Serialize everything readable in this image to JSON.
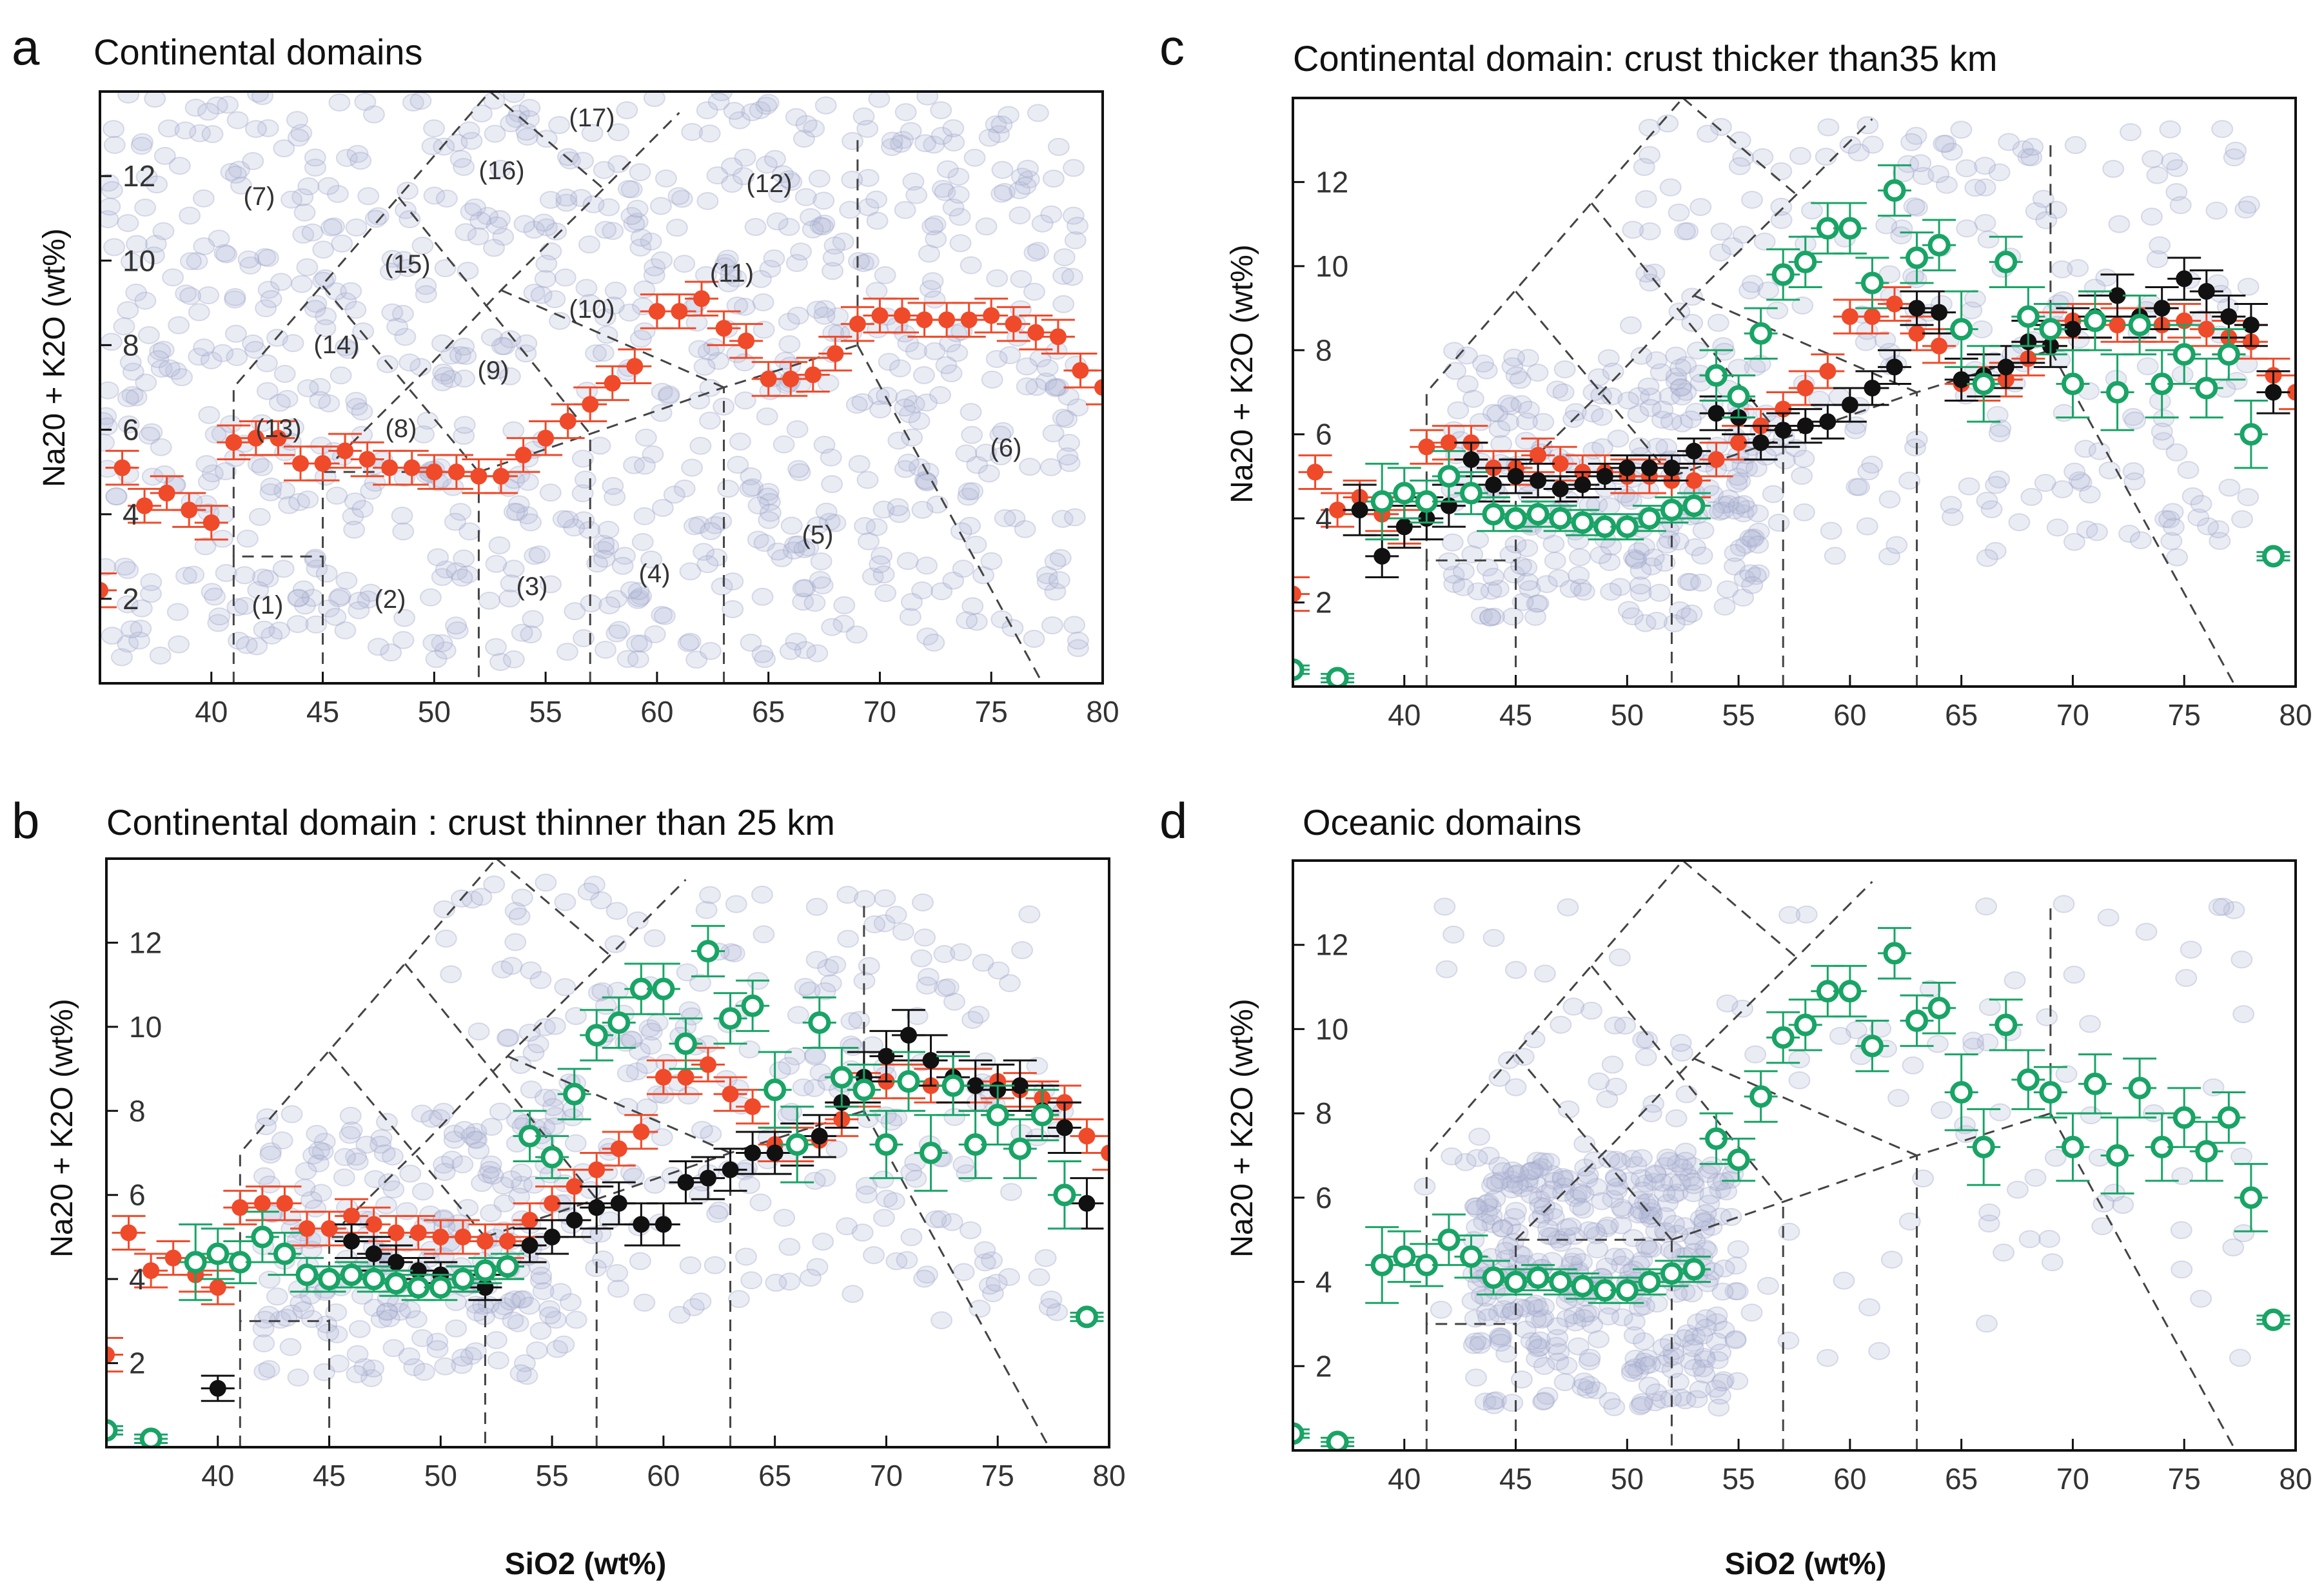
{
  "figure": {
    "xlabel": "SiO2 (wt%)",
    "ylabel": "Na20 + K2O (wt%)",
    "colors": {
      "red": "#ef4a2a",
      "black": "#111111",
      "green": "#19a466",
      "cloud": "#b5bad6"
    }
  },
  "panels": [
    {
      "letter": "a",
      "title": "Continental domains",
      "show_xlabel": false,
      "xticks": [
        "40",
        "45",
        "50",
        "55",
        "60",
        "65",
        "70",
        "75",
        "80"
      ],
      "yticks": [
        "2",
        "4",
        "6",
        "8",
        "10",
        "12"
      ],
      "field_labels": [
        "(1)",
        "(2)",
        "(3)",
        "(4)",
        "(5)",
        "(6)",
        "(7)",
        "(8)",
        "(9)",
        "(10)",
        "(11)",
        "(12)",
        "(13)",
        "(14)",
        "(15)",
        "(16)",
        "(17)"
      ]
    },
    {
      "letter": "b",
      "title": "Continental domain : crust thinner than 25 km",
      "show_xlabel": true,
      "xticks": [
        "40",
        "45",
        "50",
        "55",
        "60",
        "65",
        "70",
        "75",
        "80"
      ],
      "yticks": [
        "2",
        "4",
        "6",
        "8",
        "10",
        "12"
      ]
    },
    {
      "letter": "c",
      "title": "Continental domain: crust thicker than35 km",
      "show_xlabel": false,
      "xticks": [
        "40",
        "45",
        "50",
        "55",
        "60",
        "65",
        "70",
        "75",
        "80"
      ],
      "yticks": [
        "2",
        "4",
        "6",
        "8",
        "10",
        "12"
      ]
    },
    {
      "letter": "d",
      "title": "Oceanic domains",
      "show_xlabel": true,
      "xticks": [
        "40",
        "45",
        "50",
        "55",
        "60",
        "65",
        "70",
        "75",
        "80"
      ],
      "yticks": [
        "2",
        "4",
        "6",
        "8",
        "10",
        "12"
      ]
    }
  ],
  "chart_data": [
    {
      "panel": "a",
      "type": "scatter",
      "title": "Continental domains",
      "xlabel": "",
      "ylabel": "Na20 + K2O (wt%)",
      "xlim": [
        35,
        80
      ],
      "ylim": [
        0,
        14
      ],
      "series": [
        {
          "name": "red",
          "marker": "filled",
          "x": [
            35,
            36,
            37,
            38,
            39,
            40,
            41,
            42,
            43,
            44,
            45,
            46,
            47,
            48,
            49,
            50,
            51,
            52,
            53,
            54,
            55,
            56,
            57,
            58,
            59,
            60,
            61,
            62,
            63,
            64,
            65,
            66,
            67,
            68,
            69,
            70,
            71,
            72,
            73,
            74,
            75,
            76,
            77,
            78,
            79,
            80
          ],
          "y": [
            2.2,
            5.1,
            4.2,
            4.5,
            4.1,
            3.8,
            5.7,
            5.8,
            5.8,
            5.2,
            5.2,
            5.5,
            5.3,
            5.1,
            5.1,
            5.0,
            5.0,
            4.9,
            4.9,
            5.4,
            5.8,
            6.2,
            6.6,
            7.1,
            7.5,
            8.8,
            8.8,
            9.1,
            8.4,
            8.1,
            7.2,
            7.2,
            7.3,
            7.8,
            8.5,
            8.7,
            8.7,
            8.6,
            8.6,
            8.6,
            8.7,
            8.5,
            8.3,
            8.2,
            7.4,
            7.0
          ]
        }
      ]
    },
    {
      "panel": "b",
      "type": "scatter",
      "title": "Continental domain : crust thinner than 25 km",
      "xlabel": "SiO2 (wt%)",
      "ylabel": "Na20 + K2O (wt%)",
      "xlim": [
        35,
        80
      ],
      "ylim": [
        0,
        14
      ],
      "series": [
        {
          "name": "red",
          "marker": "filled",
          "x": [
            35,
            36,
            37,
            38,
            39,
            40,
            41,
            42,
            43,
            44,
            45,
            46,
            47,
            48,
            49,
            50,
            51,
            52,
            53,
            54,
            55,
            56,
            57,
            58,
            59,
            60,
            61,
            62,
            63,
            64,
            65,
            66,
            67,
            68,
            69,
            70,
            71,
            72,
            73,
            74,
            75,
            76,
            77,
            78,
            79,
            80
          ],
          "y": [
            2.2,
            5.1,
            4.2,
            4.5,
            4.1,
            3.8,
            5.7,
            5.8,
            5.8,
            5.2,
            5.2,
            5.5,
            5.3,
            5.1,
            5.1,
            5.0,
            5.0,
            4.9,
            4.9,
            5.4,
            5.8,
            6.2,
            6.6,
            7.1,
            7.5,
            8.8,
            8.8,
            9.1,
            8.4,
            8.1,
            7.2,
            7.2,
            7.3,
            7.8,
            8.5,
            8.7,
            8.7,
            8.6,
            8.6,
            8.6,
            8.7,
            8.5,
            8.3,
            8.2,
            7.4,
            7.0
          ]
        },
        {
          "name": "black",
          "marker": "filled",
          "x": [
            40,
            46,
            47,
            48,
            49,
            50,
            51,
            52,
            53,
            54,
            55,
            56,
            57,
            58,
            59,
            60,
            61,
            62,
            63,
            64,
            65,
            66,
            67,
            68,
            69,
            70,
            71,
            72,
            73,
            74,
            75,
            76,
            77,
            78,
            79
          ],
          "y": [
            1.4,
            4.9,
            4.6,
            4.4,
            4.2,
            4.1,
            4.0,
            3.8,
            4.3,
            4.8,
            5.0,
            5.4,
            5.7,
            5.8,
            5.3,
            5.3,
            6.3,
            6.4,
            6.6,
            7.0,
            7.0,
            7.2,
            7.4,
            8.2,
            8.8,
            9.3,
            9.8,
            9.2,
            8.8,
            8.6,
            8.5,
            8.6,
            8.0,
            7.6,
            5.8
          ],
          "err": [
            0.3,
            0.4,
            0.4,
            0.4,
            0.3,
            0.3,
            0.3,
            0.3,
            0.3,
            0.4,
            0.4,
            0.4,
            0.5,
            0.5,
            0.5,
            0.5,
            0.5,
            0.5,
            0.5,
            0.5,
            0.5,
            0.5,
            0.5,
            0.6,
            0.6,
            0.6,
            0.6,
            0.6,
            0.6,
            0.6,
            0.6,
            0.6,
            0.6,
            0.6,
            0.6
          ]
        },
        {
          "name": "green",
          "marker": "open",
          "x": [
            35,
            37,
            39,
            40,
            41,
            42,
            43,
            44,
            45,
            46,
            47,
            48,
            49,
            50,
            51,
            52,
            53,
            54,
            55,
            56,
            57,
            58,
            59,
            60,
            61,
            62,
            63,
            64,
            65,
            66,
            67,
            68,
            69,
            70,
            71,
            72,
            73,
            74,
            75,
            76,
            77,
            78,
            79
          ],
          "y": [
            0.4,
            0.2,
            4.4,
            4.6,
            4.4,
            5.0,
            4.6,
            4.1,
            4.0,
            4.1,
            4.0,
            3.9,
            3.8,
            3.8,
            4.0,
            4.2,
            4.3,
            7.4,
            6.9,
            8.4,
            9.8,
            10.1,
            10.9,
            10.9,
            9.6,
            11.8,
            10.2,
            10.5,
            8.5,
            7.2,
            10.1,
            8.8,
            8.5,
            7.2,
            8.7,
            7.0,
            8.6,
            7.2,
            7.9,
            7.1,
            7.9,
            6.0,
            3.1
          ],
          "err": [
            0.1,
            0.1,
            0.9,
            0.6,
            0.5,
            0.6,
            0.5,
            0.4,
            0.3,
            0.3,
            0.3,
            0.3,
            0.3,
            0.3,
            0.3,
            0.3,
            0.3,
            0.6,
            0.5,
            0.6,
            0.6,
            0.6,
            0.6,
            0.6,
            0.6,
            0.6,
            0.6,
            0.6,
            0.9,
            0.9,
            0.6,
            0.7,
            0.6,
            0.8,
            0.7,
            0.9,
            0.7,
            0.8,
            0.7,
            0.7,
            0.6,
            0.8,
            0.1
          ]
        }
      ]
    },
    {
      "panel": "c",
      "type": "scatter",
      "title": "Continental domain: crust thicker than35 km",
      "xlabel": "",
      "ylabel": "Na20 + K2O (wt%)",
      "xlim": [
        35,
        80
      ],
      "ylim": [
        0,
        14
      ],
      "series": [
        {
          "name": "red",
          "marker": "filled",
          "x": [
            35,
            36,
            37,
            38,
            39,
            40,
            41,
            42,
            43,
            44,
            45,
            46,
            47,
            48,
            49,
            50,
            51,
            52,
            53,
            54,
            55,
            56,
            57,
            58,
            59,
            60,
            61,
            62,
            63,
            64,
            65,
            66,
            67,
            68,
            69,
            70,
            71,
            72,
            73,
            74,
            75,
            76,
            77,
            78,
            79,
            80
          ],
          "y": [
            2.2,
            5.1,
            4.2,
            4.5,
            4.1,
            3.8,
            5.7,
            5.8,
            5.8,
            5.2,
            5.2,
            5.5,
            5.3,
            5.1,
            5.1,
            5.0,
            5.0,
            4.9,
            4.9,
            5.4,
            5.8,
            6.2,
            6.6,
            7.1,
            7.5,
            8.8,
            8.8,
            9.1,
            8.4,
            8.1,
            7.2,
            7.2,
            7.3,
            7.8,
            8.5,
            8.7,
            8.7,
            8.6,
            8.6,
            8.6,
            8.7,
            8.5,
            8.3,
            8.2,
            7.4,
            7.0
          ]
        },
        {
          "name": "black",
          "marker": "filled",
          "x": [
            38,
            39,
            40,
            41,
            42,
            43,
            44,
            45,
            46,
            47,
            48,
            49,
            50,
            51,
            52,
            53,
            54,
            55,
            56,
            57,
            58,
            59,
            60,
            61,
            62,
            63,
            64,
            65,
            66,
            67,
            68,
            69,
            70,
            71,
            72,
            73,
            74,
            75,
            76,
            77,
            78,
            79
          ],
          "y": [
            4.2,
            3.1,
            3.8,
            4.0,
            4.3,
            5.4,
            4.8,
            5.0,
            4.9,
            4.7,
            4.8,
            5.0,
            5.2,
            5.2,
            5.2,
            5.6,
            6.5,
            6.4,
            5.8,
            6.1,
            6.2,
            6.3,
            6.7,
            7.1,
            7.6,
            9.0,
            8.9,
            7.3,
            7.4,
            7.6,
            8.2,
            8.1,
            8.5,
            8.8,
            9.3,
            8.8,
            9.0,
            9.7,
            9.4,
            8.8,
            8.6,
            7.0
          ],
          "err": [
            0.6,
            0.5,
            0.5,
            0.5,
            0.5,
            0.4,
            0.4,
            0.4,
            0.4,
            0.3,
            0.3,
            0.3,
            0.3,
            0.3,
            0.3,
            0.3,
            0.4,
            0.4,
            0.4,
            0.4,
            0.4,
            0.4,
            0.4,
            0.4,
            0.4,
            0.4,
            0.5,
            0.5,
            0.5,
            0.5,
            0.5,
            0.5,
            0.5,
            0.5,
            0.5,
            0.5,
            0.5,
            0.5,
            0.5,
            0.5,
            0.5,
            0.5
          ]
        },
        {
          "name": "green",
          "marker": "open",
          "x": [
            35,
            37,
            39,
            40,
            41,
            42,
            43,
            44,
            45,
            46,
            47,
            48,
            49,
            50,
            51,
            52,
            53,
            54,
            55,
            56,
            57,
            58,
            59,
            60,
            61,
            62,
            63,
            64,
            65,
            66,
            67,
            68,
            69,
            70,
            71,
            72,
            73,
            74,
            75,
            76,
            77,
            78,
            79
          ],
          "y": [
            0.4,
            0.2,
            4.4,
            4.6,
            4.4,
            5.0,
            4.6,
            4.1,
            4.0,
            4.1,
            4.0,
            3.9,
            3.8,
            3.8,
            4.0,
            4.2,
            4.3,
            7.4,
            6.9,
            8.4,
            9.8,
            10.1,
            10.9,
            10.9,
            9.6,
            11.8,
            10.2,
            10.5,
            8.5,
            7.2,
            10.1,
            8.8,
            8.5,
            7.2,
            8.7,
            7.0,
            8.6,
            7.2,
            7.9,
            7.1,
            7.9,
            6.0,
            3.1
          ],
          "err": [
            0.1,
            0.1,
            0.9,
            0.6,
            0.5,
            0.6,
            0.5,
            0.4,
            0.3,
            0.3,
            0.3,
            0.3,
            0.3,
            0.3,
            0.3,
            0.3,
            0.3,
            0.6,
            0.5,
            0.6,
            0.6,
            0.6,
            0.6,
            0.6,
            0.6,
            0.6,
            0.6,
            0.6,
            0.9,
            0.9,
            0.6,
            0.7,
            0.6,
            0.8,
            0.7,
            0.9,
            0.7,
            0.8,
            0.7,
            0.7,
            0.6,
            0.8,
            0.1
          ]
        }
      ]
    },
    {
      "panel": "d",
      "type": "scatter",
      "title": "Oceanic domains",
      "xlabel": "SiO2 (wt%)",
      "ylabel": "Na20 + K2O (wt%)",
      "xlim": [
        35,
        80
      ],
      "ylim": [
        0,
        14
      ],
      "series": [
        {
          "name": "green",
          "marker": "open",
          "x": [
            35,
            37,
            39,
            40,
            41,
            42,
            43,
            44,
            45,
            46,
            47,
            48,
            49,
            50,
            51,
            52,
            53,
            54,
            55,
            56,
            57,
            58,
            59,
            60,
            61,
            62,
            63,
            64,
            65,
            66,
            67,
            68,
            69,
            70,
            71,
            72,
            73,
            74,
            75,
            76,
            77,
            78,
            79
          ],
          "y": [
            0.4,
            0.2,
            4.4,
            4.6,
            4.4,
            5.0,
            4.6,
            4.1,
            4.0,
            4.1,
            4.0,
            3.9,
            3.8,
            3.8,
            4.0,
            4.2,
            4.3,
            7.4,
            6.9,
            8.4,
            9.8,
            10.1,
            10.9,
            10.9,
            9.6,
            11.8,
            10.2,
            10.5,
            8.5,
            7.2,
            10.1,
            8.8,
            8.5,
            7.2,
            8.7,
            7.0,
            8.6,
            7.2,
            7.9,
            7.1,
            7.9,
            6.0,
            3.1
          ],
          "err": [
            0.1,
            0.1,
            0.9,
            0.6,
            0.5,
            0.6,
            0.5,
            0.4,
            0.3,
            0.3,
            0.3,
            0.3,
            0.3,
            0.3,
            0.3,
            0.3,
            0.3,
            0.6,
            0.5,
            0.6,
            0.6,
            0.6,
            0.6,
            0.6,
            0.6,
            0.6,
            0.6,
            0.6,
            0.9,
            0.9,
            0.6,
            0.7,
            0.6,
            0.8,
            0.7,
            0.9,
            0.7,
            0.8,
            0.7,
            0.7,
            0.6,
            0.8,
            0.1
          ]
        }
      ]
    }
  ]
}
